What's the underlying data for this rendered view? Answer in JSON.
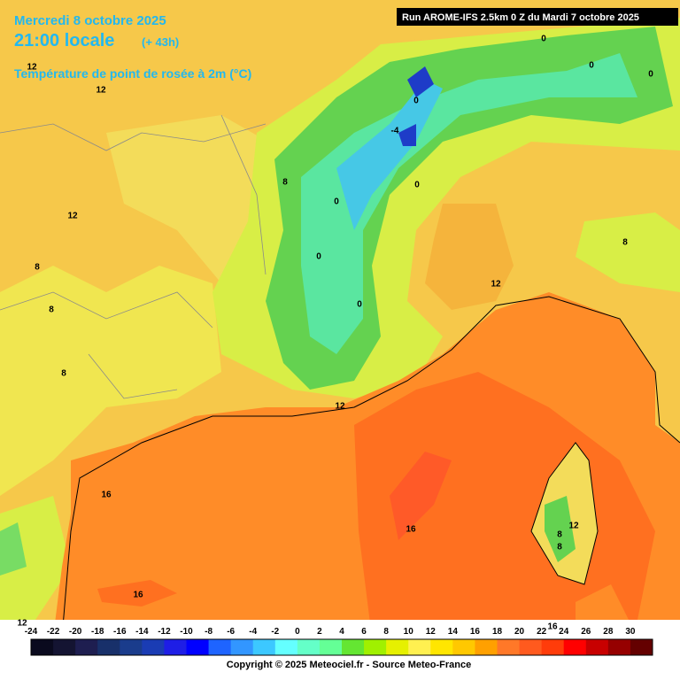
{
  "header": {
    "date": "Mercredi 8 octobre 2025",
    "time": "21:00 locale",
    "lead": "(+ 43h)",
    "parameter": "Température de point de rosée à 2m (°C)",
    "run": "Run AROME-IFS 2.5km 0 Z du Mardi 7 octobre 2025"
  },
  "contour_labels": [
    "12",
    "12",
    "12",
    "8",
    "8",
    "8",
    "8",
    "0",
    "-4",
    "0",
    "0",
    "0",
    "0",
    "8",
    "12",
    "12",
    "16",
    "16",
    "16",
    "8",
    "12",
    "8",
    "16",
    "12",
    "0",
    "0",
    "0"
  ],
  "color_scale": [
    {
      "value": -24,
      "color": "#0a0a1e"
    },
    {
      "value": -22,
      "color": "#141432"
    },
    {
      "value": -20,
      "color": "#1e1e50"
    },
    {
      "value": -18,
      "color": "#18306a"
    },
    {
      "value": -16,
      "color": "#1a3c8c"
    },
    {
      "value": -14,
      "color": "#1a3cb4"
    },
    {
      "value": -12,
      "color": "#1e1ee6"
    },
    {
      "value": -10,
      "color": "#0000ff"
    },
    {
      "value": -8,
      "color": "#1e64ff"
    },
    {
      "value": -6,
      "color": "#3296ff"
    },
    {
      "value": -4,
      "color": "#3cc8ff"
    },
    {
      "value": -2,
      "color": "#64ffff"
    },
    {
      "value": 0,
      "color": "#64ffc8"
    },
    {
      "value": 2,
      "color": "#64ff96"
    },
    {
      "value": 4,
      "color": "#64e632"
    },
    {
      "value": 6,
      "color": "#a0f000"
    },
    {
      "value": 8,
      "color": "#e6f000"
    },
    {
      "value": 10,
      "color": "#fff050"
    },
    {
      "value": 12,
      "color": "#ffe600"
    },
    {
      "value": 14,
      "color": "#ffc800"
    },
    {
      "value": 16,
      "color": "#ffa000"
    },
    {
      "value": 18,
      "color": "#ff7828"
    },
    {
      "value": 20,
      "color": "#ff5a1e"
    },
    {
      "value": 22,
      "color": "#ff3c0a"
    },
    {
      "value": 24,
      "color": "#ff0000"
    },
    {
      "value": 26,
      "color": "#c80000"
    },
    {
      "value": 28,
      "color": "#960000"
    },
    {
      "value": 30,
      "color": "#640000"
    }
  ],
  "copyright": "Copyright © 2025 Meteociel.fr - Source Meteo-France"
}
